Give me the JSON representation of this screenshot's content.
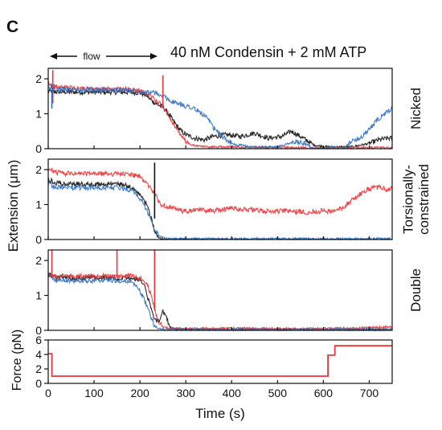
{
  "figure": {
    "panel_letter": "C",
    "condition": "40 nM Condensin + 2 mM ATP",
    "flow_label": "flow",
    "shared_ylabel": "Extension (μm)",
    "xlabel": "Time (s)"
  },
  "colors": {
    "black": "#111111",
    "red": "#e8353a",
    "blue": "#2f6fbf",
    "force": "#e8353a",
    "axis": "#111111"
  },
  "chart_data": [
    {
      "type": "line",
      "title": "Nicked",
      "ylabel": "",
      "xlim": [
        0,
        750
      ],
      "ylim": [
        0,
        2.3
      ],
      "x_ticks": [
        0,
        100,
        200,
        300,
        400,
        500,
        600,
        700
      ],
      "y_ticks": [
        0,
        1,
        2
      ],
      "y_tick_labels": [
        "0",
        "1",
        "2"
      ],
      "series": [
        {
          "color": "black",
          "x": [
            0,
            20,
            100,
            170,
            200,
            215,
            225,
            240,
            250,
            262,
            275,
            290,
            300,
            320,
            340,
            360,
            390,
            420,
            450,
            480,
            510,
            530,
            550,
            580,
            610,
            640,
            660,
            680,
            700,
            720,
            740,
            750
          ],
          "y": [
            1.65,
            1.62,
            1.62,
            1.62,
            1.6,
            1.52,
            1.38,
            1.25,
            1.2,
            1.0,
            0.75,
            0.5,
            0.4,
            0.3,
            0.25,
            0.35,
            0.4,
            0.35,
            0.45,
            0.3,
            0.35,
            0.5,
            0.35,
            0.1,
            0.05,
            0.05,
            0.05,
            0.1,
            0.15,
            0.25,
            0.3,
            0.3
          ]
        },
        {
          "color": "red",
          "x": [
            0,
            20,
            100,
            170,
            200,
            225,
            250,
            262,
            275,
            290,
            305,
            320,
            350,
            400,
            500,
            600,
            700,
            750
          ],
          "y": [
            1.85,
            1.75,
            1.7,
            1.7,
            1.65,
            1.5,
            1.2,
            1.0,
            0.65,
            0.35,
            0.15,
            0.08,
            0.05,
            0.05,
            0.03,
            0.03,
            0.03,
            0.03
          ]
        },
        {
          "color": "blue",
          "x": [
            0,
            20,
            100,
            170,
            200,
            230,
            250,
            270,
            290,
            310,
            330,
            345,
            360,
            380,
            400,
            410,
            420,
            440,
            470,
            500,
            540,
            560,
            580,
            600,
            620,
            640,
            660,
            680,
            700,
            720,
            740,
            750
          ],
          "y": [
            1.75,
            1.7,
            1.68,
            1.68,
            1.65,
            1.6,
            1.5,
            1.35,
            1.25,
            1.2,
            1.05,
            0.9,
            0.6,
            0.35,
            0.15,
            0.1,
            0.1,
            0.05,
            0.05,
            0.05,
            0.2,
            0.15,
            0.0,
            0.0,
            0.05,
            0.0,
            0.2,
            0.3,
            0.55,
            0.85,
            1.05,
            1.15
          ]
        }
      ],
      "spikes": [
        {
          "color": "red",
          "x": 10,
          "y": [
            1.3,
            2.25
          ]
        },
        {
          "color": "blue",
          "x": 8,
          "y": [
            1.15,
            1.85
          ]
        },
        {
          "color": "red",
          "x": 250,
          "y": [
            1.2,
            2.1
          ]
        }
      ]
    },
    {
      "type": "line",
      "title": "Torsionally-constrained",
      "ylabel": "",
      "xlim": [
        0,
        750
      ],
      "ylim": [
        0,
        2.3
      ],
      "x_ticks": [
        0,
        100,
        200,
        300,
        400,
        500,
        600,
        700
      ],
      "y_ticks": [
        0,
        1,
        2
      ],
      "y_tick_labels": [
        "0",
        "1",
        "2"
      ],
      "series": [
        {
          "color": "black",
          "x": [
            0,
            15,
            50,
            150,
            170,
            185,
            200,
            215,
            225,
            232,
            240,
            250,
            270,
            300,
            750
          ],
          "y": [
            1.72,
            1.62,
            1.58,
            1.58,
            1.55,
            1.45,
            1.25,
            1.0,
            0.6,
            0.25,
            0.05,
            0.0,
            0.0,
            0.0,
            0.0
          ]
        },
        {
          "color": "red",
          "x": [
            0,
            15,
            50,
            150,
            180,
            200,
            215,
            230,
            245,
            260,
            280,
            300,
            330,
            360,
            400,
            440,
            480,
            520,
            560,
            600,
            620,
            640,
            660,
            680,
            700,
            720,
            740,
            750
          ],
          "y": [
            2.05,
            1.92,
            1.88,
            1.88,
            1.86,
            1.8,
            1.6,
            1.35,
            1.0,
            0.95,
            0.85,
            0.8,
            0.85,
            0.82,
            0.9,
            0.85,
            0.8,
            0.82,
            0.78,
            0.82,
            0.8,
            0.9,
            1.1,
            1.3,
            1.45,
            1.5,
            1.42,
            1.45
          ]
        },
        {
          "color": "blue",
          "x": [
            0,
            15,
            50,
            150,
            170,
            190,
            205,
            220,
            232,
            245,
            260,
            300,
            750
          ],
          "y": [
            1.6,
            1.5,
            1.48,
            1.48,
            1.45,
            1.35,
            1.1,
            0.7,
            0.3,
            0.08,
            0.02,
            0.02,
            0.02
          ]
        }
      ],
      "spikes": [
        {
          "color": "black",
          "x": 232,
          "y": [
            0.6,
            2.2
          ]
        }
      ]
    },
    {
      "type": "line",
      "title": "Double",
      "ylabel": "",
      "xlim": [
        0,
        750
      ],
      "ylim": [
        0,
        2.3
      ],
      "x_ticks": [
        0,
        100,
        200,
        300,
        400,
        500,
        600,
        700
      ],
      "y_ticks": [
        0,
        1,
        2
      ],
      "y_tick_labels": [
        "0",
        "1",
        "2"
      ],
      "series": [
        {
          "color": "black",
          "x": [
            0,
            15,
            50,
            150,
            180,
            200,
            212,
            220,
            228,
            235,
            242,
            250,
            258,
            265,
            275,
            300,
            750
          ],
          "y": [
            1.62,
            1.52,
            1.5,
            1.5,
            1.48,
            1.45,
            1.2,
            0.8,
            0.45,
            0.3,
            0.25,
            0.55,
            0.35,
            0.1,
            0.03,
            0.02,
            0.02
          ]
        },
        {
          "color": "red",
          "x": [
            0,
            15,
            50,
            150,
            180,
            200,
            215,
            225,
            232,
            240,
            250,
            265,
            300,
            400,
            500,
            600,
            700,
            750
          ],
          "y": [
            1.62,
            1.55,
            1.55,
            1.55,
            1.55,
            1.5,
            1.35,
            1.0,
            0.6,
            0.25,
            0.1,
            0.06,
            0.05,
            0.06,
            0.05,
            0.05,
            0.08,
            0.1
          ]
        },
        {
          "color": "blue",
          "x": [
            0,
            15,
            50,
            150,
            180,
            192,
            205,
            215,
            225,
            232,
            240,
            260,
            750
          ],
          "y": [
            1.52,
            1.45,
            1.43,
            1.43,
            1.4,
            1.3,
            1.0,
            0.7,
            0.35,
            0.12,
            0.05,
            0.03,
            0.03
          ]
        }
      ],
      "spikes": [
        {
          "color": "red",
          "x": 8,
          "y": [
            1.5,
            2.3
          ]
        },
        {
          "color": "red",
          "x": 150,
          "y": [
            1.5,
            2.3
          ]
        },
        {
          "color": "red",
          "x": 232,
          "y": [
            0.6,
            2.3
          ]
        }
      ]
    },
    {
      "type": "line",
      "title": "",
      "ylabel": "Force (pN)",
      "xlabel": "Time (s)",
      "xlim": [
        0,
        750
      ],
      "ylim": [
        0,
        6
      ],
      "x_ticks": [
        0,
        100,
        200,
        300,
        400,
        500,
        600,
        700
      ],
      "x_tick_labels": [
        "0",
        "100",
        "200",
        "300",
        "400",
        "500",
        "600",
        "700"
      ],
      "y_ticks": [
        0,
        2,
        4,
        6
      ],
      "y_tick_labels": [
        "0",
        "2",
        "4",
        "6"
      ],
      "series": [
        {
          "color": "force",
          "x": [
            0,
            3,
            3,
            8,
            8,
            610,
            610,
            625,
            625,
            750
          ],
          "y": [
            4.1,
            4.1,
            4.1,
            4.1,
            1.0,
            1.0,
            3.9,
            3.9,
            5.2,
            5.2
          ]
        }
      ],
      "spikes": []
    }
  ]
}
